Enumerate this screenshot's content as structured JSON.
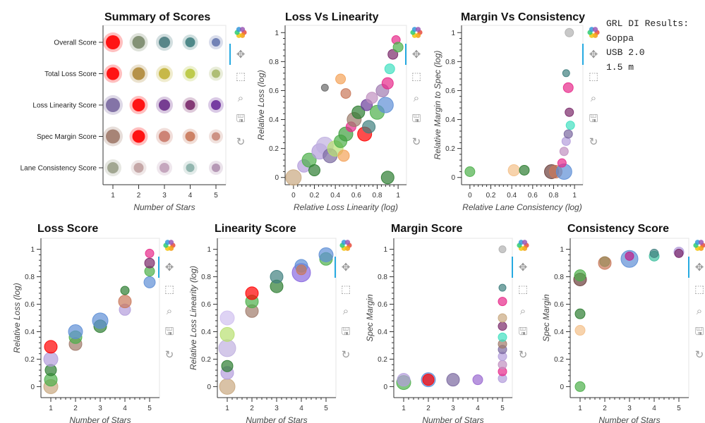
{
  "info": {
    "heading": "GRL DI Results:",
    "lines": [
      "Goppa",
      "USB 2.0",
      "1.5 m"
    ]
  },
  "toolbar_icons": [
    "bokeh-logo-icon",
    "pan-icon",
    "box-zoom-icon",
    "wheel-zoom-icon",
    "save-icon",
    "reset-icon"
  ],
  "colors": {
    "red": "#ff0000",
    "purple": "#6a3d9a",
    "olive": "#9a9a3a",
    "tan": "#c9a880",
    "green": "#4daf4a",
    "dkgreen": "#2e7d32",
    "teal": "#40807f",
    "pink": "#e7298a",
    "lavender": "#b39ddb",
    "blue": "#5e8fd6",
    "orange": "#f4a259",
    "salmon": "#c9785a"
  },
  "chart_data": [
    {
      "id": "summary",
      "type": "scatter",
      "title": "Summary of Scores",
      "xlabel": "Number of Stars",
      "ylabel": "",
      "xticks": [
        "1",
        "2",
        "3",
        "4",
        "5"
      ],
      "categories": [
        "Overall Score",
        "Total Loss Score",
        "Loss Linearity Score",
        "Spec Margin Score",
        "Lane Consistency Score"
      ],
      "points": [
        {
          "cat": "Overall Score",
          "x": 1,
          "color": "#ff0000",
          "size": 22
        },
        {
          "cat": "Overall Score",
          "x": 2,
          "color": "#7a8a6a",
          "size": 20
        },
        {
          "cat": "Overall Score",
          "x": 3,
          "color": "#4a7c80",
          "size": 18
        },
        {
          "cat": "Overall Score",
          "x": 4,
          "color": "#40807f",
          "size": 16
        },
        {
          "cat": "Overall Score",
          "x": 5,
          "color": "#6678b0",
          "size": 14
        },
        {
          "cat": "Total Loss Score",
          "x": 1,
          "color": "#ff0000",
          "size": 20
        },
        {
          "cat": "Total Loss Score",
          "x": 2,
          "color": "#b08a3a",
          "size": 20
        },
        {
          "cat": "Total Loss Score",
          "x": 3,
          "color": "#c2b23a",
          "size": 18
        },
        {
          "cat": "Total Loss Score",
          "x": 4,
          "color": "#b8c73e",
          "size": 16
        },
        {
          "cat": "Total Loss Score",
          "x": 5,
          "color": "#a8b86a",
          "size": 14
        },
        {
          "cat": "Loss Linearity Score",
          "x": 1,
          "color": "#7a68a0",
          "size": 22
        },
        {
          "cat": "Loss Linearity Score",
          "x": 2,
          "color": "#ff0000",
          "size": 20
        },
        {
          "cat": "Loss Linearity Score",
          "x": 3,
          "color": "#6a2d8a",
          "size": 18
        },
        {
          "cat": "Loss Linearity Score",
          "x": 4,
          "color": "#7a2a6a",
          "size": 16
        },
        {
          "cat": "Loss Linearity Score",
          "x": 5,
          "color": "#6a2d9a",
          "size": 16
        },
        {
          "cat": "Spec Margin Score",
          "x": 1,
          "color": "#a07a6a",
          "size": 22
        },
        {
          "cat": "Spec Margin Score",
          "x": 2,
          "color": "#ff0000",
          "size": 20
        },
        {
          "cat": "Spec Margin Score",
          "x": 3,
          "color": "#c97a6a",
          "size": 18
        },
        {
          "cat": "Spec Margin Score",
          "x": 4,
          "color": "#c9785a",
          "size": 16
        },
        {
          "cat": "Spec Margin Score",
          "x": 5,
          "color": "#c98a7a",
          "size": 14
        },
        {
          "cat": "Lane Consistency Score",
          "x": 1,
          "color": "#9aa08a",
          "size": 18
        },
        {
          "cat": "Lane Consistency Score",
          "x": 2,
          "color": "#c0a0a0",
          "size": 16
        },
        {
          "cat": "Lane Consistency Score",
          "x": 3,
          "color": "#c0a0b8",
          "size": 16
        },
        {
          "cat": "Lane Consistency Score",
          "x": 4,
          "color": "#8ab0a8",
          "size": 14
        },
        {
          "cat": "Lane Consistency Score",
          "x": 5,
          "color": "#b090b0",
          "size": 14
        }
      ]
    },
    {
      "id": "loss_vs_linearity",
      "type": "scatter",
      "title": "Loss Vs Linearity",
      "xlabel": "Relative Loss Linearity (log)",
      "ylabel": "Relative Loss (log)",
      "xlim": [
        -0.08,
        1.08
      ],
      "ylim": [
        -0.05,
        1.05
      ],
      "xticks": [
        0,
        0.2,
        0.4,
        0.6,
        0.8,
        1
      ],
      "yticks": [
        0,
        0.2,
        0.4,
        0.6,
        0.8,
        1
      ],
      "points": [
        {
          "x": 0.0,
          "y": 0.0,
          "color": "#c9a880",
          "size": 22
        },
        {
          "x": 0.1,
          "y": 0.08,
          "color": "#b39ddb",
          "size": 18
        },
        {
          "x": 0.15,
          "y": 0.12,
          "color": "#4daf4a",
          "size": 20
        },
        {
          "x": 0.2,
          "y": 0.05,
          "color": "#2e7d32",
          "size": 16
        },
        {
          "x": 0.25,
          "y": 0.18,
          "color": "#b39ddb",
          "size": 22
        },
        {
          "x": 0.3,
          "y": 0.22,
          "color": "#c0b0e0",
          "size": 24
        },
        {
          "x": 0.35,
          "y": 0.15,
          "color": "#7a6aa0",
          "size": 20
        },
        {
          "x": 0.4,
          "y": 0.2,
          "color": "#b8e070",
          "size": 22
        },
        {
          "x": 0.45,
          "y": 0.25,
          "color": "#4daf4a",
          "size": 18
        },
        {
          "x": 0.48,
          "y": 0.15,
          "color": "#f4a259",
          "size": 16
        },
        {
          "x": 0.5,
          "y": 0.3,
          "color": "#40a040",
          "size": 20
        },
        {
          "x": 0.55,
          "y": 0.35,
          "color": "#e7298a",
          "size": 14
        },
        {
          "x": 0.58,
          "y": 0.4,
          "color": "#9a7a6a",
          "size": 20
        },
        {
          "x": 0.62,
          "y": 0.45,
          "color": "#2e7d32",
          "size": 18
        },
        {
          "x": 0.68,
          "y": 0.3,
          "color": "#ff0000",
          "size": 20
        },
        {
          "x": 0.7,
          "y": 0.5,
          "color": "#6a3d9a",
          "size": 16
        },
        {
          "x": 0.72,
          "y": 0.35,
          "color": "#40807f",
          "size": 18
        },
        {
          "x": 0.75,
          "y": 0.55,
          "color": "#c090c0",
          "size": 16
        },
        {
          "x": 0.8,
          "y": 0.45,
          "color": "#4daf4a",
          "size": 20
        },
        {
          "x": 0.85,
          "y": 0.6,
          "color": "#a07ab0",
          "size": 18
        },
        {
          "x": 0.88,
          "y": 0.5,
          "color": "#5e8fd6",
          "size": 22
        },
        {
          "x": 0.9,
          "y": 0.65,
          "color": "#e7298a",
          "size": 16
        },
        {
          "x": 0.92,
          "y": 0.75,
          "color": "#40e0c0",
          "size": 14
        },
        {
          "x": 0.95,
          "y": 0.85,
          "color": "#7a2a6a",
          "size": 14
        },
        {
          "x": 0.98,
          "y": 0.95,
          "color": "#e7298a",
          "size": 12
        },
        {
          "x": 1.0,
          "y": 0.9,
          "color": "#4daf4a",
          "size": 14
        },
        {
          "x": 0.9,
          "y": 0.0,
          "color": "#2e7d32",
          "size": 18
        },
        {
          "x": 0.45,
          "y": 0.68,
          "color": "#f4a259",
          "size": 14
        },
        {
          "x": 0.3,
          "y": 0.62,
          "color": "#6a6a6a",
          "size": 10
        },
        {
          "x": 0.5,
          "y": 0.58,
          "color": "#c9785a",
          "size": 14
        }
      ]
    },
    {
      "id": "margin_vs_consistency",
      "type": "scatter",
      "title": "Margin Vs Consistency",
      "xlabel": "Relative Lane Consistency (log)",
      "ylabel": "Relative Margin to Spec (log)",
      "xlim": [
        -0.08,
        1.08
      ],
      "ylim": [
        -0.05,
        1.05
      ],
      "xticks": [
        0,
        0.2,
        0.4,
        0.6,
        0.8,
        1
      ],
      "yticks": [
        0,
        0.2,
        0.4,
        0.6,
        0.8,
        1
      ],
      "points": [
        {
          "x": 0.0,
          "y": 0.04,
          "color": "#4daf4a",
          "size": 14
        },
        {
          "x": 0.42,
          "y": 0.05,
          "color": "#f4c089",
          "size": 16
        },
        {
          "x": 0.52,
          "y": 0.05,
          "color": "#2e7d32",
          "size": 14
        },
        {
          "x": 0.78,
          "y": 0.04,
          "color": "#6a3d3a",
          "size": 20
        },
        {
          "x": 0.82,
          "y": 0.04,
          "color": "#c9785a",
          "size": 18
        },
        {
          "x": 0.9,
          "y": 0.04,
          "color": "#5e8fd6",
          "size": 22
        },
        {
          "x": 0.88,
          "y": 0.1,
          "color": "#e7298a",
          "size": 12
        },
        {
          "x": 0.9,
          "y": 0.18,
          "color": "#c090c0",
          "size": 12
        },
        {
          "x": 0.92,
          "y": 0.25,
          "color": "#b39ddb",
          "size": 12
        },
        {
          "x": 0.94,
          "y": 0.3,
          "color": "#7a68a0",
          "size": 12
        },
        {
          "x": 0.96,
          "y": 0.36,
          "color": "#40e0c0",
          "size": 12
        },
        {
          "x": 0.95,
          "y": 0.45,
          "color": "#7a2a6a",
          "size": 12
        },
        {
          "x": 0.94,
          "y": 0.62,
          "color": "#e7298a",
          "size": 14
        },
        {
          "x": 0.92,
          "y": 0.72,
          "color": "#40807f",
          "size": 10
        },
        {
          "x": 0.95,
          "y": 1.0,
          "color": "#b0b0b0",
          "size": 12
        }
      ]
    },
    {
      "id": "loss_score",
      "type": "scatter",
      "title": "Loss Score",
      "xlabel": "Number of Stars",
      "ylabel": "Relative Loss (log)",
      "xlim": [
        0.6,
        5.4
      ],
      "ylim": [
        -0.08,
        1.08
      ],
      "xticks": [
        1,
        2,
        3,
        4,
        5
      ],
      "yticks": [
        0,
        0.2,
        0.4,
        0.6,
        0.8,
        1
      ],
      "points": [
        {
          "x": 1,
          "y": 0.0,
          "color": "#c9a880",
          "size": 20
        },
        {
          "x": 1,
          "y": 0.05,
          "color": "#4daf4a",
          "size": 18
        },
        {
          "x": 1,
          "y": 0.12,
          "color": "#2e7d32",
          "size": 16
        },
        {
          "x": 1,
          "y": 0.2,
          "color": "#b39ddb",
          "size": 20
        },
        {
          "x": 1,
          "y": 0.29,
          "color": "#ff0000",
          "size": 18
        },
        {
          "x": 2,
          "y": 0.31,
          "color": "#a07a6a",
          "size": 18
        },
        {
          "x": 2,
          "y": 0.36,
          "color": "#4daf4a",
          "size": 18
        },
        {
          "x": 2,
          "y": 0.4,
          "color": "#5e8fd6",
          "size": 20
        },
        {
          "x": 3,
          "y": 0.44,
          "color": "#2e7d32",
          "size": 18
        },
        {
          "x": 3,
          "y": 0.48,
          "color": "#5e8fd6",
          "size": 22
        },
        {
          "x": 4,
          "y": 0.56,
          "color": "#b39ddb",
          "size": 16
        },
        {
          "x": 4,
          "y": 0.62,
          "color": "#c9785a",
          "size": 18
        },
        {
          "x": 4,
          "y": 0.7,
          "color": "#2e7d32",
          "size": 12
        },
        {
          "x": 5,
          "y": 0.76,
          "color": "#5e8fd6",
          "size": 16
        },
        {
          "x": 5,
          "y": 0.84,
          "color": "#4daf4a",
          "size": 14
        },
        {
          "x": 5,
          "y": 0.9,
          "color": "#7a2a6a",
          "size": 14
        },
        {
          "x": 5,
          "y": 0.97,
          "color": "#e7298a",
          "size": 12
        }
      ]
    },
    {
      "id": "linearity_score",
      "type": "scatter",
      "title": "Linearity Score",
      "xlabel": "Number of Stars",
      "ylabel": "Relative Loss Linearity (log)",
      "xlim": [
        0.6,
        5.4
      ],
      "ylim": [
        -0.08,
        1.08
      ],
      "xticks": [
        1,
        2,
        3,
        4,
        5
      ],
      "yticks": [
        0,
        0.2,
        0.4,
        0.6,
        0.8,
        1
      ],
      "points": [
        {
          "x": 1,
          "y": 0.0,
          "color": "#c9a880",
          "size": 22
        },
        {
          "x": 1,
          "y": 0.1,
          "color": "#b39ddb",
          "size": 18
        },
        {
          "x": 1,
          "y": 0.15,
          "color": "#2e7d32",
          "size": 16
        },
        {
          "x": 1,
          "y": 0.28,
          "color": "#c0b0e0",
          "size": 24
        },
        {
          "x": 1,
          "y": 0.38,
          "color": "#b8e070",
          "size": 20
        },
        {
          "x": 1,
          "y": 0.5,
          "color": "#d0c0f0",
          "size": 20
        },
        {
          "x": 2,
          "y": 0.55,
          "color": "#a07a6a",
          "size": 18
        },
        {
          "x": 2,
          "y": 0.62,
          "color": "#4daf4a",
          "size": 18
        },
        {
          "x": 2,
          "y": 0.68,
          "color": "#ff0000",
          "size": 18
        },
        {
          "x": 3,
          "y": 0.73,
          "color": "#2e7d32",
          "size": 18
        },
        {
          "x": 3,
          "y": 0.8,
          "color": "#40807f",
          "size": 18
        },
        {
          "x": 4,
          "y": 0.83,
          "color": "#8a6ae0",
          "size": 26
        },
        {
          "x": 4,
          "y": 0.88,
          "color": "#5e8fd6",
          "size": 18
        },
        {
          "x": 4,
          "y": 0.85,
          "color": "#c9785a",
          "size": 14
        },
        {
          "x": 5,
          "y": 0.93,
          "color": "#4daf4a",
          "size": 18
        },
        {
          "x": 5,
          "y": 0.96,
          "color": "#5e8fd6",
          "size": 20
        }
      ]
    },
    {
      "id": "margin_score",
      "type": "scatter",
      "title": "Margin Score",
      "xlabel": "Number of Stars",
      "ylabel": "Spec Margin",
      "xlim": [
        0.6,
        5.4
      ],
      "ylim": [
        -0.08,
        1.08
      ],
      "xticks": [
        1,
        2,
        3,
        4,
        5
      ],
      "yticks": [
        0,
        0.2,
        0.4,
        0.6,
        0.8,
        1
      ],
      "points": [
        {
          "x": 1,
          "y": 0.03,
          "color": "#4daf4a",
          "size": 20
        },
        {
          "x": 1,
          "y": 0.05,
          "color": "#b39ddb",
          "size": 18
        },
        {
          "x": 2,
          "y": 0.05,
          "color": "#5e8fd6",
          "size": 20
        },
        {
          "x": 2,
          "y": 0.05,
          "color": "#ff0000",
          "size": 16
        },
        {
          "x": 3,
          "y": 0.05,
          "color": "#7a68a0",
          "size": 18
        },
        {
          "x": 4,
          "y": 0.05,
          "color": "#9a6ad0",
          "size": 14
        },
        {
          "x": 5,
          "y": 0.06,
          "color": "#b39ddb",
          "size": 12
        },
        {
          "x": 5,
          "y": 0.11,
          "color": "#e7298a",
          "size": 12
        },
        {
          "x": 5,
          "y": 0.16,
          "color": "#c090c0",
          "size": 12
        },
        {
          "x": 5,
          "y": 0.22,
          "color": "#b39ddb",
          "size": 12
        },
        {
          "x": 5,
          "y": 0.27,
          "color": "#7a68a0",
          "size": 12
        },
        {
          "x": 5,
          "y": 0.31,
          "color": "#a07a6a",
          "size": 12
        },
        {
          "x": 5,
          "y": 0.36,
          "color": "#40e0c0",
          "size": 12
        },
        {
          "x": 5,
          "y": 0.44,
          "color": "#7a2a6a",
          "size": 12
        },
        {
          "x": 5,
          "y": 0.5,
          "color": "#c9a880",
          "size": 12
        },
        {
          "x": 5,
          "y": 0.62,
          "color": "#e7298a",
          "size": 12
        },
        {
          "x": 5,
          "y": 0.72,
          "color": "#40807f",
          "size": 10
        },
        {
          "x": 5,
          "y": 1.0,
          "color": "#b0b0b0",
          "size": 10
        }
      ]
    },
    {
      "id": "consistency_score",
      "type": "scatter",
      "title": "Consistency Score",
      "xlabel": "Number of Stars",
      "ylabel": "Spec Margin",
      "xlim": [
        0.6,
        5.4
      ],
      "ylim": [
        -0.08,
        1.08
      ],
      "xticks": [
        1,
        2,
        3,
        4,
        5
      ],
      "yticks": [
        0,
        0.2,
        0.4,
        0.6,
        0.8,
        1
      ],
      "points": [
        {
          "x": 1,
          "y": 0.0,
          "color": "#4daf4a",
          "size": 14
        },
        {
          "x": 1,
          "y": 0.41,
          "color": "#f4c089",
          "size": 14
        },
        {
          "x": 1,
          "y": 0.53,
          "color": "#2e7d32",
          "size": 14
        },
        {
          "x": 1,
          "y": 0.78,
          "color": "#6a3d3a",
          "size": 18
        },
        {
          "x": 1,
          "y": 0.81,
          "color": "#4daf4a",
          "size": 16
        },
        {
          "x": 2,
          "y": 0.9,
          "color": "#c9785a",
          "size": 18
        },
        {
          "x": 2,
          "y": 0.91,
          "color": "#9a8a5a",
          "size": 14
        },
        {
          "x": 3,
          "y": 0.93,
          "color": "#5e8fd6",
          "size": 24
        },
        {
          "x": 3,
          "y": 0.95,
          "color": "#c0208a",
          "size": 12
        },
        {
          "x": 4,
          "y": 0.95,
          "color": "#40c0a0",
          "size": 14
        },
        {
          "x": 4,
          "y": 0.97,
          "color": "#40807f",
          "size": 12
        },
        {
          "x": 5,
          "y": 0.98,
          "color": "#b39ddb",
          "size": 14
        },
        {
          "x": 5,
          "y": 0.97,
          "color": "#7a2a6a",
          "size": 12
        }
      ]
    }
  ]
}
